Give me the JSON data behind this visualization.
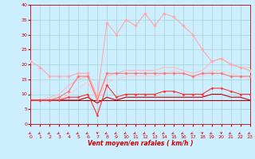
{
  "x": [
    0,
    1,
    2,
    3,
    4,
    5,
    6,
    7,
    8,
    9,
    10,
    11,
    12,
    13,
    14,
    15,
    16,
    17,
    18,
    19,
    20,
    21,
    22,
    23
  ],
  "series": [
    {
      "name": "rafales_max",
      "color": "#ffaaaa",
      "linewidth": 0.8,
      "marker": "D",
      "markersize": 2.0,
      "values": [
        21,
        19,
        16,
        16,
        16,
        17,
        17,
        9,
        34,
        30,
        35,
        33,
        37,
        33,
        37,
        36,
        33,
        30,
        25,
        21,
        22,
        20,
        19,
        18
      ]
    },
    {
      "name": "vent_upper_band",
      "color": "#ffbbbb",
      "linewidth": 0.8,
      "marker": null,
      "markersize": 0,
      "values": [
        8,
        8,
        9,
        10,
        13,
        15,
        16,
        9,
        16,
        17,
        18,
        18,
        18,
        18,
        19,
        19,
        18,
        17,
        18,
        21,
        22,
        20,
        19,
        19
      ]
    },
    {
      "name": "rafales_mean",
      "color": "#ff7777",
      "linewidth": 0.8,
      "marker": "D",
      "markersize": 1.8,
      "values": [
        8,
        8,
        8,
        9,
        11,
        16,
        16,
        8,
        17,
        17,
        17,
        17,
        17,
        17,
        17,
        17,
        17,
        16,
        17,
        17,
        17,
        16,
        16,
        16
      ]
    },
    {
      "name": "vent_lower_band",
      "color": "#ffcccc",
      "linewidth": 0.8,
      "marker": null,
      "markersize": 0,
      "values": [
        8,
        8,
        8,
        8,
        10,
        12,
        14,
        8,
        14,
        15,
        16,
        16,
        16,
        16,
        17,
        18,
        17,
        16,
        16,
        18,
        18,
        17,
        16,
        15
      ]
    },
    {
      "name": "vent_mean_upper",
      "color": "#ff3333",
      "linewidth": 0.8,
      "marker": "D",
      "markersize": 1.5,
      "values": [
        8,
        8,
        8,
        8,
        9,
        9,
        10,
        3,
        13,
        9,
        10,
        10,
        10,
        10,
        11,
        11,
        10,
        10,
        10,
        12,
        12,
        11,
        10,
        10
      ]
    },
    {
      "name": "vent_mean_mid",
      "color": "#cc0000",
      "linewidth": 0.8,
      "marker": null,
      "markersize": 0,
      "values": [
        8,
        8,
        8,
        8,
        8,
        8,
        9,
        7,
        9,
        8,
        9,
        9,
        9,
        9,
        9,
        9,
        9,
        9,
        9,
        10,
        10,
        9,
        9,
        8
      ]
    },
    {
      "name": "vent_mean_base",
      "color": "#aa0000",
      "linewidth": 0.8,
      "marker": null,
      "markersize": 0,
      "values": [
        8,
        8,
        8,
        8,
        8,
        8,
        8,
        8,
        8,
        8,
        8,
        8,
        8,
        8,
        8,
        8,
        8,
        8,
        8,
        8,
        8,
        8,
        8,
        8
      ]
    }
  ],
  "xlabel": "Vent moyen/en rafales ( km/h )",
  "xlim": [
    0,
    23
  ],
  "ylim": [
    0,
    40
  ],
  "yticks": [
    0,
    5,
    10,
    15,
    20,
    25,
    30,
    35,
    40
  ],
  "xticks": [
    0,
    1,
    2,
    3,
    4,
    5,
    6,
    7,
    8,
    9,
    10,
    11,
    12,
    13,
    14,
    15,
    16,
    17,
    18,
    19,
    20,
    21,
    22,
    23
  ],
  "bg_color": "#cceeff",
  "grid_color": "#99cccc",
  "tick_color": "#cc0000",
  "label_color": "#cc0000",
  "arrow_angles": [
    225,
    225,
    225,
    225,
    225,
    225,
    225,
    270,
    225,
    225,
    225,
    225,
    225,
    225,
    225,
    225,
    225,
    225,
    270,
    225,
    270,
    225,
    225,
    225
  ]
}
